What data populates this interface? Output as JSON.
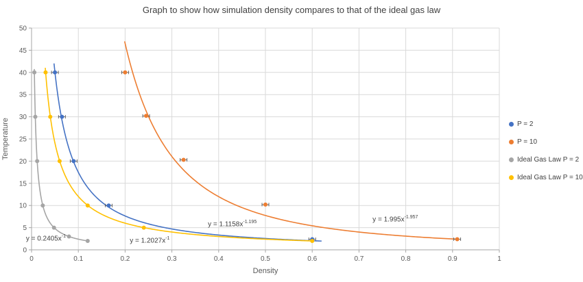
{
  "chart_data": {
    "type": "scatter",
    "title": "Graph to show how simulation density compares to that of the ideal gas law",
    "xlabel": "Density",
    "ylabel": "Temperature",
    "xlim": [
      0,
      1
    ],
    "ylim": [
      0,
      50
    ],
    "xticks": [
      0,
      0.1,
      0.2,
      0.3,
      0.4,
      0.5,
      0.6,
      0.7,
      0.8,
      0.9,
      1
    ],
    "xtick_labels": [
      "0",
      "0.1",
      "0.2",
      "0.3",
      "0.4",
      "0.5",
      "0.6",
      "0.7",
      "0.8",
      "0.9",
      "1"
    ],
    "yticks": [
      0,
      5,
      10,
      15,
      20,
      25,
      30,
      35,
      40,
      45,
      50
    ],
    "ytick_labels": [
      "0",
      "5",
      "10",
      "15",
      "20",
      "25",
      "30",
      "35",
      "40",
      "45",
      "50"
    ],
    "grid": true,
    "legend_position": "right",
    "series": [
      {
        "name": "P = 2",
        "color": "#4472C4",
        "marker": "circle",
        "error_bars": true,
        "points": [
          [
            0.05,
            40
          ],
          [
            0.065,
            30
          ],
          [
            0.09,
            20
          ],
          [
            0.165,
            10
          ],
          [
            0.6,
            2.4
          ]
        ],
        "trendline": {
          "a": 1.1158,
          "b": -1.195,
          "x_start": 0.048,
          "x_end": 0.62
        },
        "equation": "y = 1.1158x",
        "equation_exp": "-1.195"
      },
      {
        "name": "P = 10",
        "color": "#ED7D31",
        "marker": "circle",
        "error_bars": true,
        "points": [
          [
            0.2,
            40
          ],
          [
            0.245,
            30.2
          ],
          [
            0.325,
            20.3
          ],
          [
            0.5,
            10.2
          ],
          [
            0.91,
            2.4
          ]
        ],
        "trendline": {
          "a": 1.995,
          "b": -1.957,
          "x_start": 0.199,
          "x_end": 0.91
        },
        "equation": "y = 1.995x",
        "equation_exp": "-1.957"
      },
      {
        "name": "Ideal Gas Law P = 2",
        "color": "#A5A5A5",
        "marker": "circle",
        "error_bars": false,
        "points": [
          [
            0.006,
            40
          ],
          [
            0.008,
            30
          ],
          [
            0.012,
            20
          ],
          [
            0.024,
            10
          ],
          [
            0.048,
            5
          ],
          [
            0.08,
            3
          ],
          [
            0.12,
            2
          ]
        ],
        "trendline": {
          "a": 0.2405,
          "b": -1,
          "x_start": 0.0059,
          "x_end": 0.12
        },
        "equation": "y = 0.2405x",
        "equation_exp": "-1"
      },
      {
        "name": "Ideal Gas Law P = 10",
        "color": "#FFC000",
        "marker": "circle",
        "error_bars": false,
        "points": [
          [
            0.03,
            40
          ],
          [
            0.04,
            30
          ],
          [
            0.06,
            20
          ],
          [
            0.12,
            10
          ],
          [
            0.24,
            5
          ],
          [
            0.6,
            2
          ]
        ],
        "trendline": {
          "a": 1.2027,
          "b": -1,
          "x_start": 0.0293,
          "x_end": 0.601
        },
        "equation": "y = 1.2027x",
        "equation_exp": "-1"
      }
    ],
    "annotations": [
      {
        "text": "y = 0.2405x",
        "sup": "-1",
        "x": -0.012,
        "y": 2.6
      },
      {
        "text": "y = 1.2027x",
        "sup": "-1",
        "x": 0.21,
        "y": 2.2
      },
      {
        "text": "y = 1.1158x",
        "sup": "-1.195",
        "x": 0.377,
        "y": 5.8
      },
      {
        "text": "y = 1.995x",
        "sup": "-1.957",
        "x": 0.729,
        "y": 7.0
      }
    ],
    "colors": {
      "gridline": "#D9D9D9",
      "axis_line": "#A6A6A6",
      "tick_text": "#595959",
      "error_bar": "#595959"
    }
  }
}
